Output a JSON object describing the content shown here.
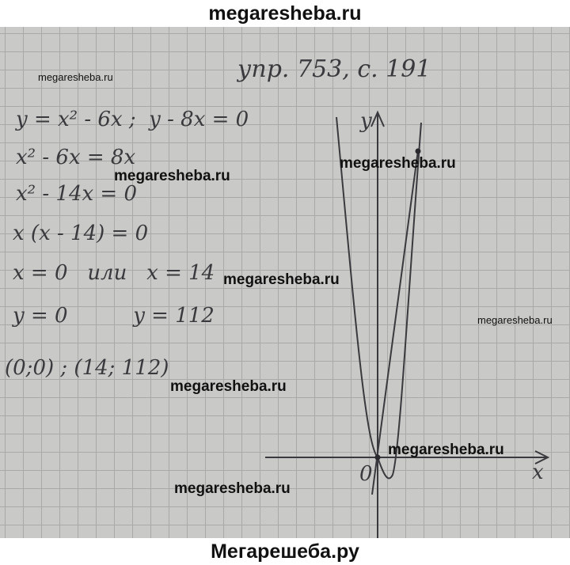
{
  "header": {
    "site": "megaresheba.ru"
  },
  "footer": {
    "site": "Мегарешеба.ру"
  },
  "watermark": "megaresheba.ru",
  "solution": {
    "heading": "упр. 753, с. 191",
    "lines": [
      "y = x² - 6x ;  y - 8x = 0",
      "x² - 6x = 8x",
      "x² - 14x = 0",
      "x (x - 14) = 0",
      "x = 0   или   x = 14",
      "y = 0          y = 112",
      "(0;0) ; (14; 112)"
    ]
  },
  "graph": {
    "x_label": "x",
    "y_label": "y",
    "origin_label": "0",
    "ink_color": "#3a3a3e"
  }
}
